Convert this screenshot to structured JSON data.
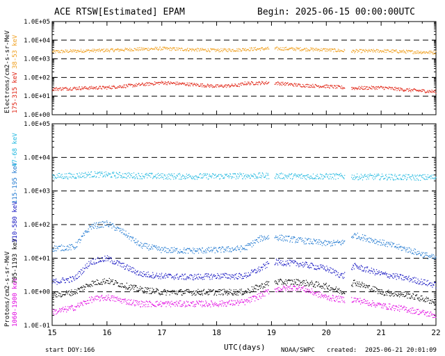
{
  "header": {
    "title": "ACE RTSW[Estimated] EPAM",
    "begin": "Begin: 2025-06-15 00:00:00UTC"
  },
  "footer": {
    "start_doy_label": "start DOY:",
    "start_doy": "166",
    "xlabel": "UTC(days)",
    "org": "NOAA/SWPC",
    "created_label": "created:",
    "created": "2025-06-21 20:01:09"
  },
  "colors": {
    "e_low": "#f0a020",
    "e_high": "#e02010",
    "p_47_68": "#20b8e0",
    "p_115_195": "#1f78d0",
    "p_310_580": "#1010c0",
    "p_795_1193": "#000000",
    "p_1060_1900": "#e000e0"
  },
  "chart_data": [
    {
      "type": "scatter",
      "panel": "electrons",
      "ylabel_parts": [
        "Electrons/cm2-s-sr-MeV",
        "175-315 keV",
        "38-53 keV"
      ],
      "yscale": "log",
      "ylim": [
        1,
        100000
      ],
      "yticks": [
        "1.0E+00",
        "1.0E+01",
        "1.0E+02",
        "1.0E+03",
        "1.0E+04",
        "1.0E+05"
      ],
      "dashed_levels": [
        10,
        100,
        1000,
        10000
      ],
      "x": [
        15.0,
        15.5,
        16.0,
        16.5,
        17.0,
        17.5,
        18.0,
        18.4,
        18.5,
        19.0,
        19.5,
        20.0,
        20.3,
        20.5,
        21.0,
        21.5,
        22.0
      ],
      "series": [
        {
          "name": "38-53 keV",
          "color_key": "e_low",
          "values": [
            2500,
            2800,
            3000,
            3400,
            3700,
            3300,
            3000,
            3200,
            3400,
            3700,
            3500,
            3200,
            2800,
            2700,
            2800,
            2500,
            2300
          ]
        },
        {
          "name": "175-315 keV",
          "color_key": "e_high",
          "values": [
            25,
            28,
            30,
            40,
            55,
            45,
            35,
            40,
            50,
            55,
            40,
            35,
            30,
            28,
            30,
            22,
            18
          ]
        }
      ],
      "xlim": [
        15,
        22
      ]
    },
    {
      "type": "scatter",
      "panel": "protons",
      "ylabel_parts": [
        "Protons/cm2-s-sr-MeV",
        "1060-1900 keV",
        "795-1193 keV",
        "310-580 keV",
        "115-195 keV",
        "47-68 keV"
      ],
      "yscale": "log",
      "ylim": [
        0.1,
        100000
      ],
      "yticks": [
        "1.0E-01",
        "1.0E+00",
        "1.0E+01",
        "1.0E+02",
        "1.0E+03",
        "1.0E+04",
        "1.0E+05"
      ],
      "dashed_levels": [
        1,
        10,
        100,
        1000,
        10000
      ],
      "x": [
        15.0,
        15.4,
        15.7,
        16.0,
        16.3,
        16.6,
        17.0,
        17.5,
        18.0,
        18.5,
        18.8,
        19.0,
        19.5,
        20.0,
        20.3,
        20.5,
        21.0,
        21.5,
        22.0
      ],
      "series": [
        {
          "name": "47-68 keV",
          "color_key": "p_47_68",
          "values": [
            2800,
            2900,
            3200,
            3100,
            3000,
            2900,
            2800,
            2800,
            2800,
            2900,
            2900,
            2900,
            2800,
            2800,
            2800,
            2700,
            2700,
            2600,
            2600
          ]
        },
        {
          "name": "115-195 keV",
          "color_key": "p_115_195",
          "values": [
            20,
            22,
            90,
            110,
            60,
            25,
            18,
            17,
            18,
            20,
            40,
            45,
            35,
            28,
            30,
            50,
            30,
            18,
            10
          ]
        },
        {
          "name": "310-580 keV",
          "color_key": "p_310_580",
          "values": [
            2,
            2.5,
            8,
            10,
            6,
            3.5,
            3,
            2.8,
            3,
            3,
            5,
            8,
            7,
            5,
            3,
            6,
            3.5,
            2.5,
            1.6
          ]
        },
        {
          "name": "795-1193 keV",
          "color_key": "p_795_1193",
          "values": [
            0.8,
            1.0,
            1.8,
            2.2,
            1.6,
            1.2,
            1.0,
            1.0,
            1.0,
            1.0,
            1.5,
            2.0,
            2.0,
            1.5,
            1.0,
            2.0,
            1.0,
            0.8,
            0.5
          ]
        },
        {
          "name": "1060-1900 keV",
          "color_key": "p_1060_1900",
          "values": [
            0.25,
            0.35,
            0.6,
            0.7,
            0.55,
            0.45,
            0.45,
            0.45,
            0.45,
            0.5,
            0.8,
            1.2,
            1.4,
            0.7,
            0.6,
            0.6,
            0.4,
            0.3,
            0.2
          ]
        }
      ],
      "xlim": [
        15,
        22
      ],
      "xticks": [
        "15",
        "16",
        "17",
        "18",
        "19",
        "20",
        "21",
        "22"
      ]
    }
  ]
}
